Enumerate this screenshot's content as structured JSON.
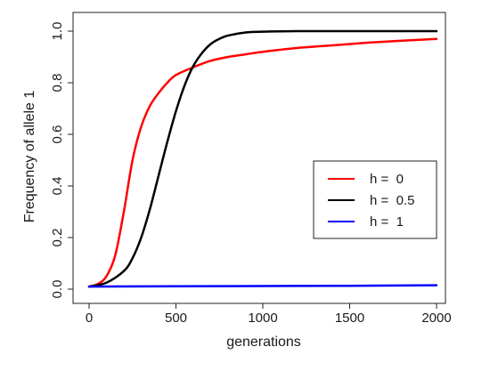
{
  "chart_data": {
    "type": "line",
    "title": "",
    "xlabel": "generations",
    "ylabel": "Frequency of allele 1",
    "xlim": [
      0,
      2000
    ],
    "ylim": [
      0,
      1
    ],
    "x_ticks": [
      "0",
      "500",
      "1000",
      "1500",
      "2000"
    ],
    "x_tick_values": [
      0,
      500,
      1000,
      1500,
      2000
    ],
    "y_ticks": [
      "0.0",
      "0.2",
      "0.4",
      "0.6",
      "0.8",
      "1.0"
    ],
    "y_tick_values": [
      0.0,
      0.2,
      0.4,
      0.6,
      0.8,
      1.0
    ],
    "grid": false,
    "legend_position": "center-right",
    "series": [
      {
        "name": "h =  0",
        "color": "#ff0000",
        "x": [
          0,
          50,
          100,
          150,
          200,
          250,
          300,
          350,
          400,
          450,
          500,
          600,
          700,
          800,
          900,
          1000,
          1200,
          1400,
          1600,
          1800,
          2000
        ],
        "values": [
          0.01,
          0.02,
          0.05,
          0.13,
          0.3,
          0.5,
          0.63,
          0.71,
          0.76,
          0.8,
          0.83,
          0.86,
          0.885,
          0.9,
          0.91,
          0.92,
          0.935,
          0.945,
          0.955,
          0.963,
          0.97
        ]
      },
      {
        "name": "h =  0.5",
        "color": "#000000",
        "x": [
          0,
          100,
          200,
          250,
          300,
          350,
          400,
          450,
          500,
          550,
          600,
          650,
          700,
          750,
          800,
          900,
          1000,
          1200,
          1500,
          2000
        ],
        "values": [
          0.01,
          0.025,
          0.07,
          0.12,
          0.2,
          0.31,
          0.44,
          0.57,
          0.69,
          0.79,
          0.865,
          0.915,
          0.95,
          0.97,
          0.983,
          0.995,
          0.998,
          1.0,
          1.0,
          1.0
        ]
      },
      {
        "name": "h =  1",
        "color": "#0000ff",
        "x": [
          0,
          500,
          1000,
          1500,
          2000
        ],
        "values": [
          0.01,
          0.011,
          0.012,
          0.013,
          0.015
        ]
      }
    ]
  }
}
